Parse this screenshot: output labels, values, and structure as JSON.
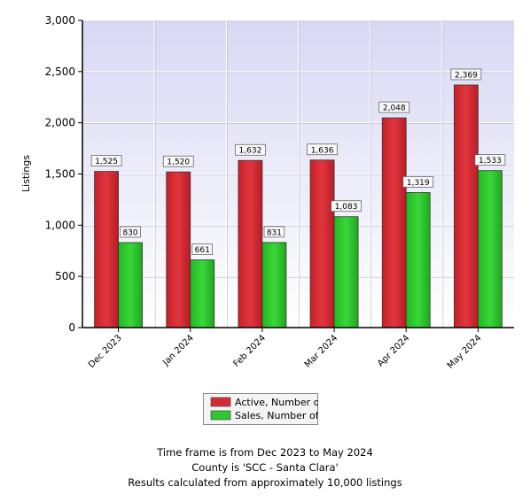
{
  "chart_data": {
    "type": "bar",
    "ylabel": "Listings",
    "ylim": [
      0,
      3000
    ],
    "yticks": [
      0,
      500,
      1000,
      1500,
      2000,
      2500,
      3000
    ],
    "grid": true,
    "categories": [
      "Dec 2023",
      "Jan 2024",
      "Feb 2024",
      "Mar 2024",
      "Apr 2024",
      "May 2024"
    ],
    "series": [
      {
        "name": "Active, Number of",
        "color": "#d62a33",
        "values": [
          1525,
          1520,
          1632,
          1636,
          2048,
          2369
        ]
      },
      {
        "name": "Sales, Number of",
        "color": "#2ec92e",
        "values": [
          830,
          661,
          831,
          1083,
          1319,
          1533
        ]
      }
    ],
    "legend_position": "bottom-center"
  },
  "footer": {
    "line1": "Time frame is from Dec 2023 to May 2024",
    "line2": "County is 'SCC - Santa Clara'",
    "line3": "Results calculated from approximately 10,000 listings"
  }
}
